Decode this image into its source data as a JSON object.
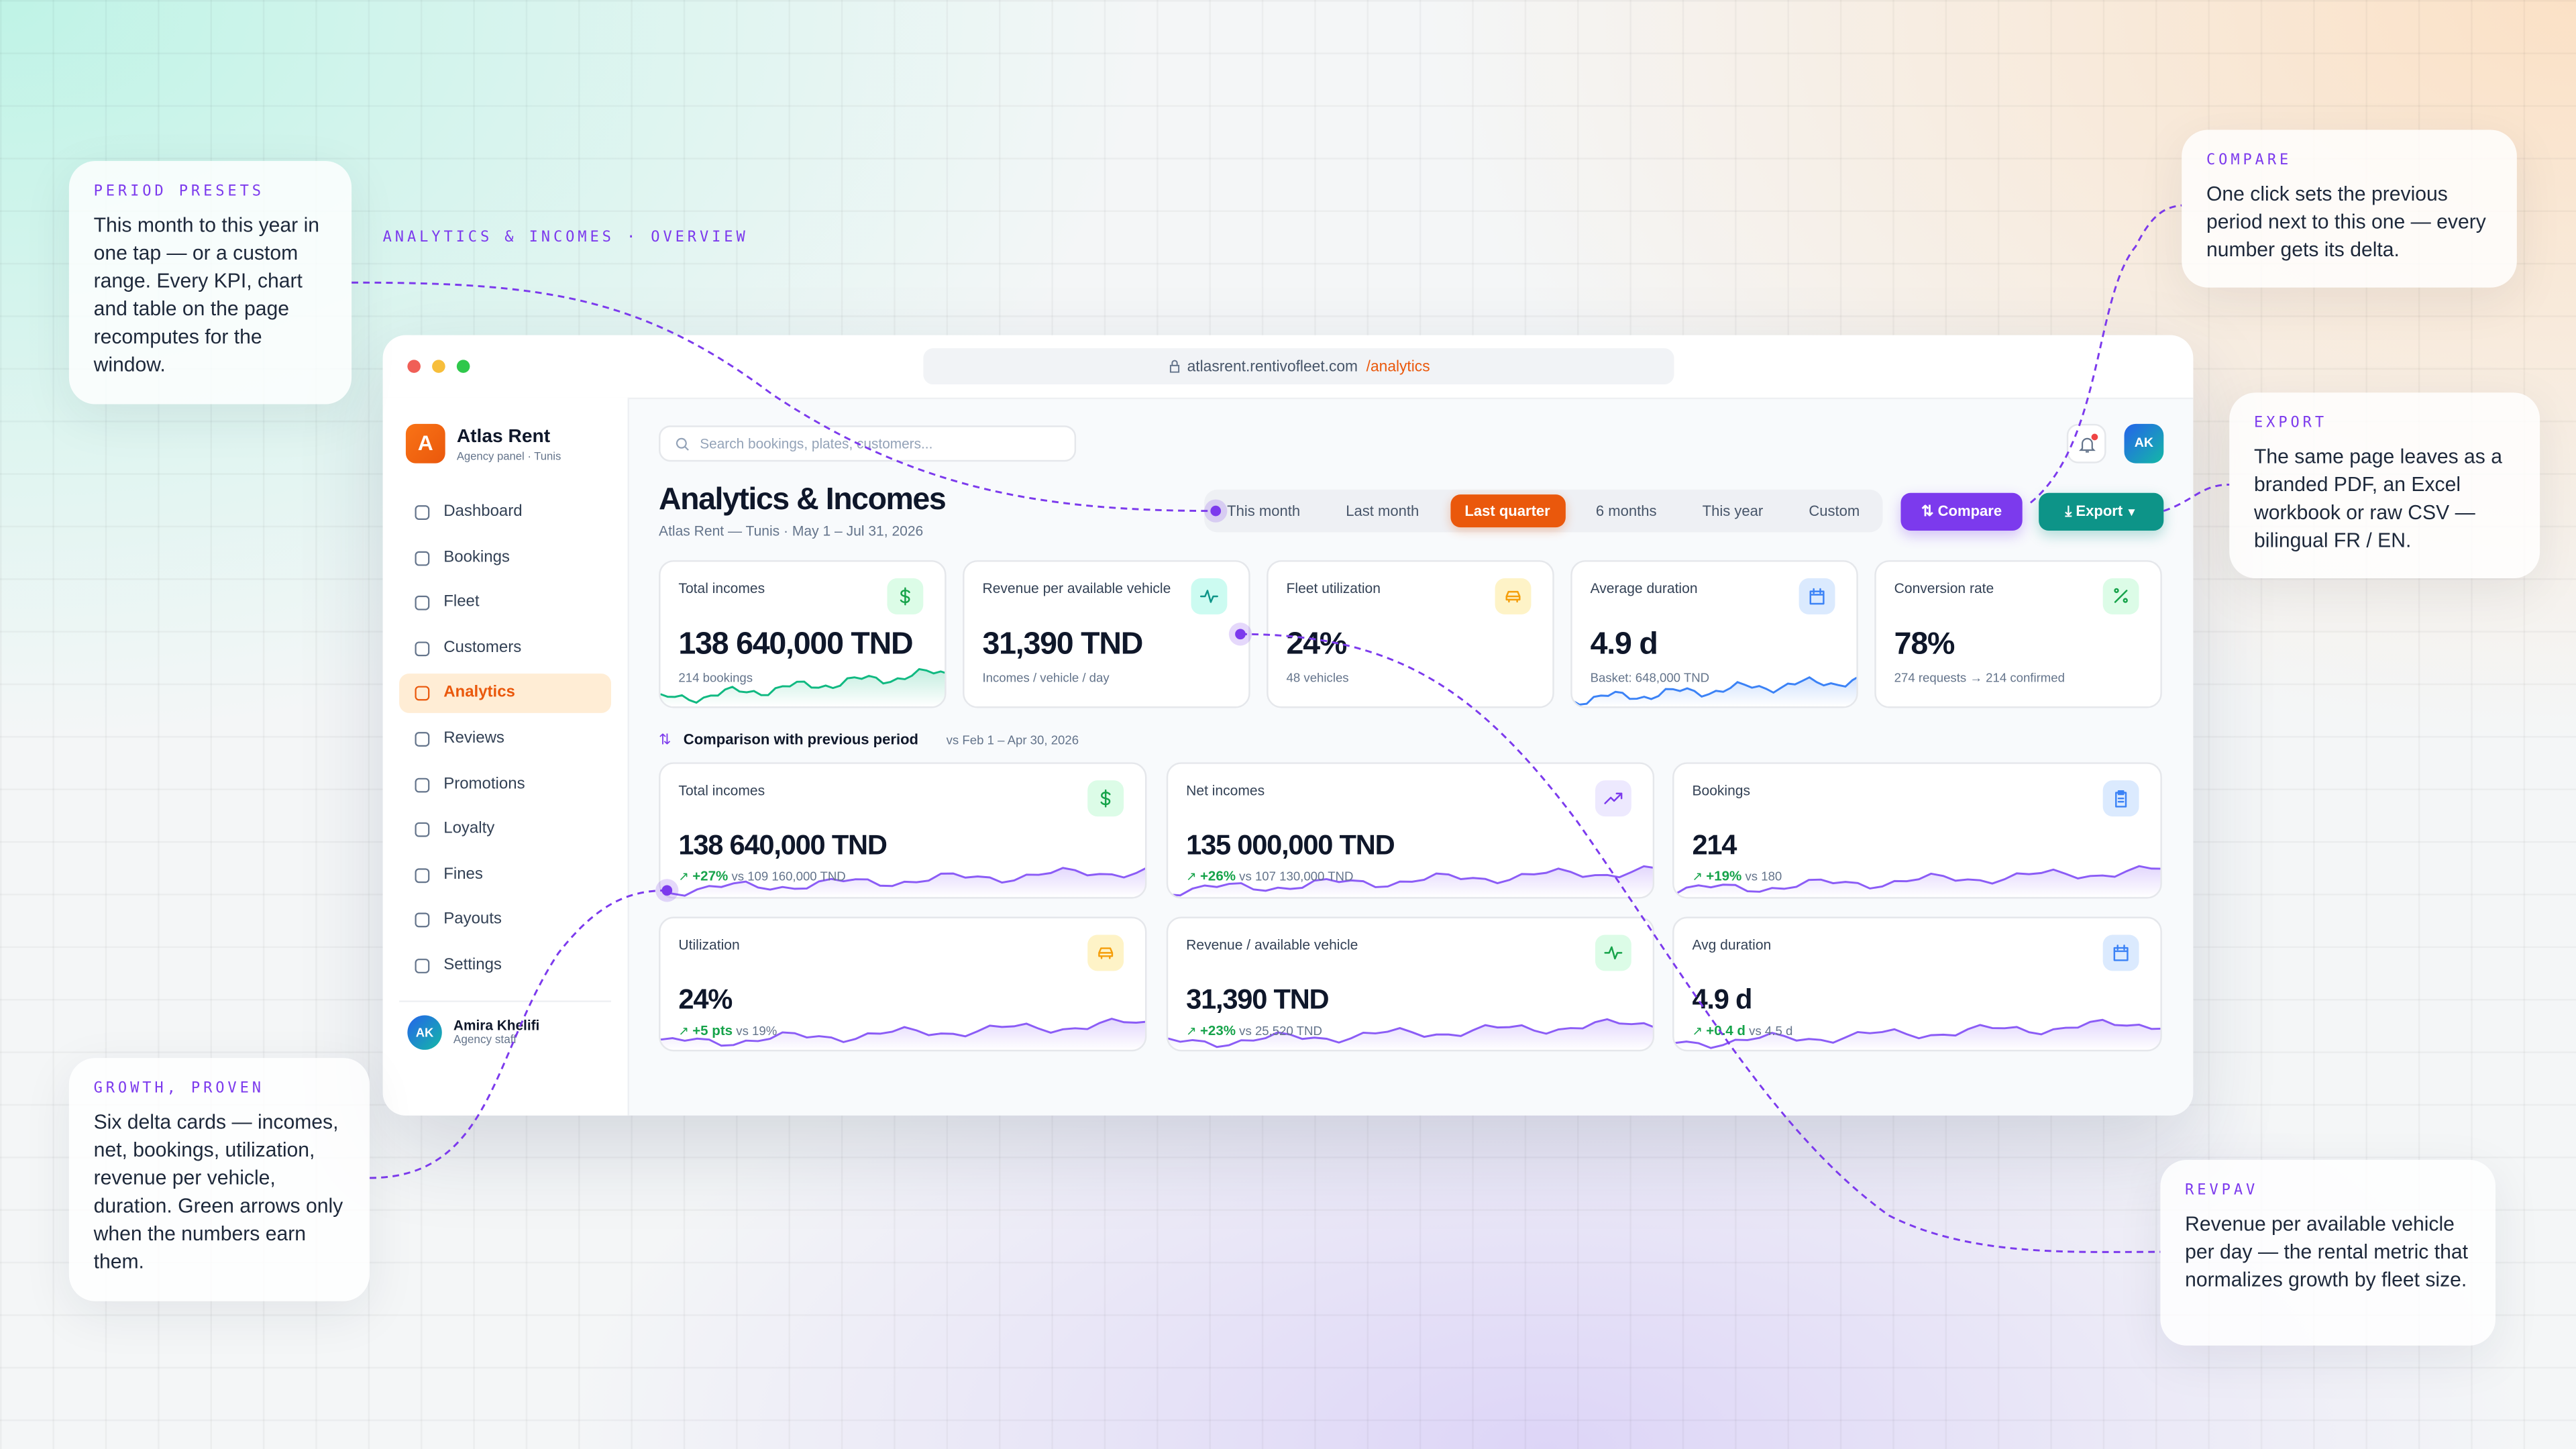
{
  "overview_label": "ANALYTICS & INCOMES · OVERVIEW",
  "callouts": [
    {
      "label": "PERIOD PRESETS",
      "text": "This month to this year in one tap — or a custom range. Every KPI, chart and table on the page recomputes for the window."
    },
    {
      "label": "COMPARE",
      "text": "One click sets the previous period next to this one — every number gets its delta."
    },
    {
      "label": "EXPORT",
      "text": "The same page leaves as a branded PDF, an Excel workbook or raw CSV — bilingual FR / EN."
    },
    {
      "label": "GROWTH, PROVEN",
      "text": "Six delta cards — incomes, net, bookings, utilization, revenue per vehicle, duration. Green arrows only when the numbers earn them."
    },
    {
      "label": "REVPAV",
      "text": "Revenue per available vehicle per day — the rental metric that normalizes growth by fleet size."
    }
  ],
  "browser": {
    "host": "atlasrent.rentivofleet.com",
    "path": "/analytics"
  },
  "sidebar": {
    "logo": "A",
    "brand": "Atlas Rent",
    "tagline": "Agency panel · Tunis",
    "nav": [
      "Dashboard",
      "Bookings",
      "Fleet",
      "Customers",
      "Analytics",
      "Reviews",
      "Promotions",
      "Loyalty",
      "Fines",
      "Payouts",
      "Settings"
    ],
    "active_index": 4,
    "user": {
      "initials": "AK",
      "name": "Amira Khelifi",
      "role": "Agency staff"
    }
  },
  "header": {
    "search_placeholder": "Search bookings, plates, customers...",
    "avatar": "AK",
    "title": "Analytics & Incomes",
    "subtitle": "Atlas Rent — Tunis · May 1 – Jul 31, 2026"
  },
  "periods": {
    "options": [
      "This month",
      "Last month",
      "Last quarter",
      "6 months",
      "This year",
      "Custom"
    ],
    "active_index": 2
  },
  "actions": {
    "compare": "Compare",
    "export": "Export"
  },
  "kpis": [
    {
      "label": "Total incomes",
      "value": "138 640,000 TND",
      "sub": "214 bookings"
    },
    {
      "label": "Revenue per available vehicle",
      "value": "31,390 TND",
      "sub": "Incomes / vehicle / day"
    },
    {
      "label": "Fleet utilization",
      "value": "24%",
      "sub": "48 vehicles"
    },
    {
      "label": "Average duration",
      "value": "4.9 d",
      "sub": "Basket: 648,000 TND"
    },
    {
      "label": "Conversion rate",
      "value": "78%",
      "sub": "274 requests → 214 confirmed"
    }
  ],
  "comparison": {
    "title": "Comparison with previous period",
    "range": "vs Feb 1 – Apr 30, 2026",
    "cards": [
      {
        "label": "Total incomes",
        "value": "138 640,000 TND",
        "delta": "+27%",
        "previous": "vs 109 160,000 TND"
      },
      {
        "label": "Net incomes",
        "value": "135 000,000 TND",
        "delta": "+26%",
        "previous": "vs 107 130,000 TND"
      },
      {
        "label": "Bookings",
        "value": "214",
        "delta": "+19%",
        "previous": "vs 180"
      },
      {
        "label": "Utilization",
        "value": "24%",
        "delta": "+5 pts",
        "previous": "vs 19%"
      },
      {
        "label": "Revenue / available vehicle",
        "value": "31,390 TND",
        "delta": "+23%",
        "previous": "vs 25,520 TND"
      },
      {
        "label": "Avg duration",
        "value": "4.9 d",
        "delta": "+0.4 d",
        "previous": "vs 4.5 d"
      }
    ]
  }
}
